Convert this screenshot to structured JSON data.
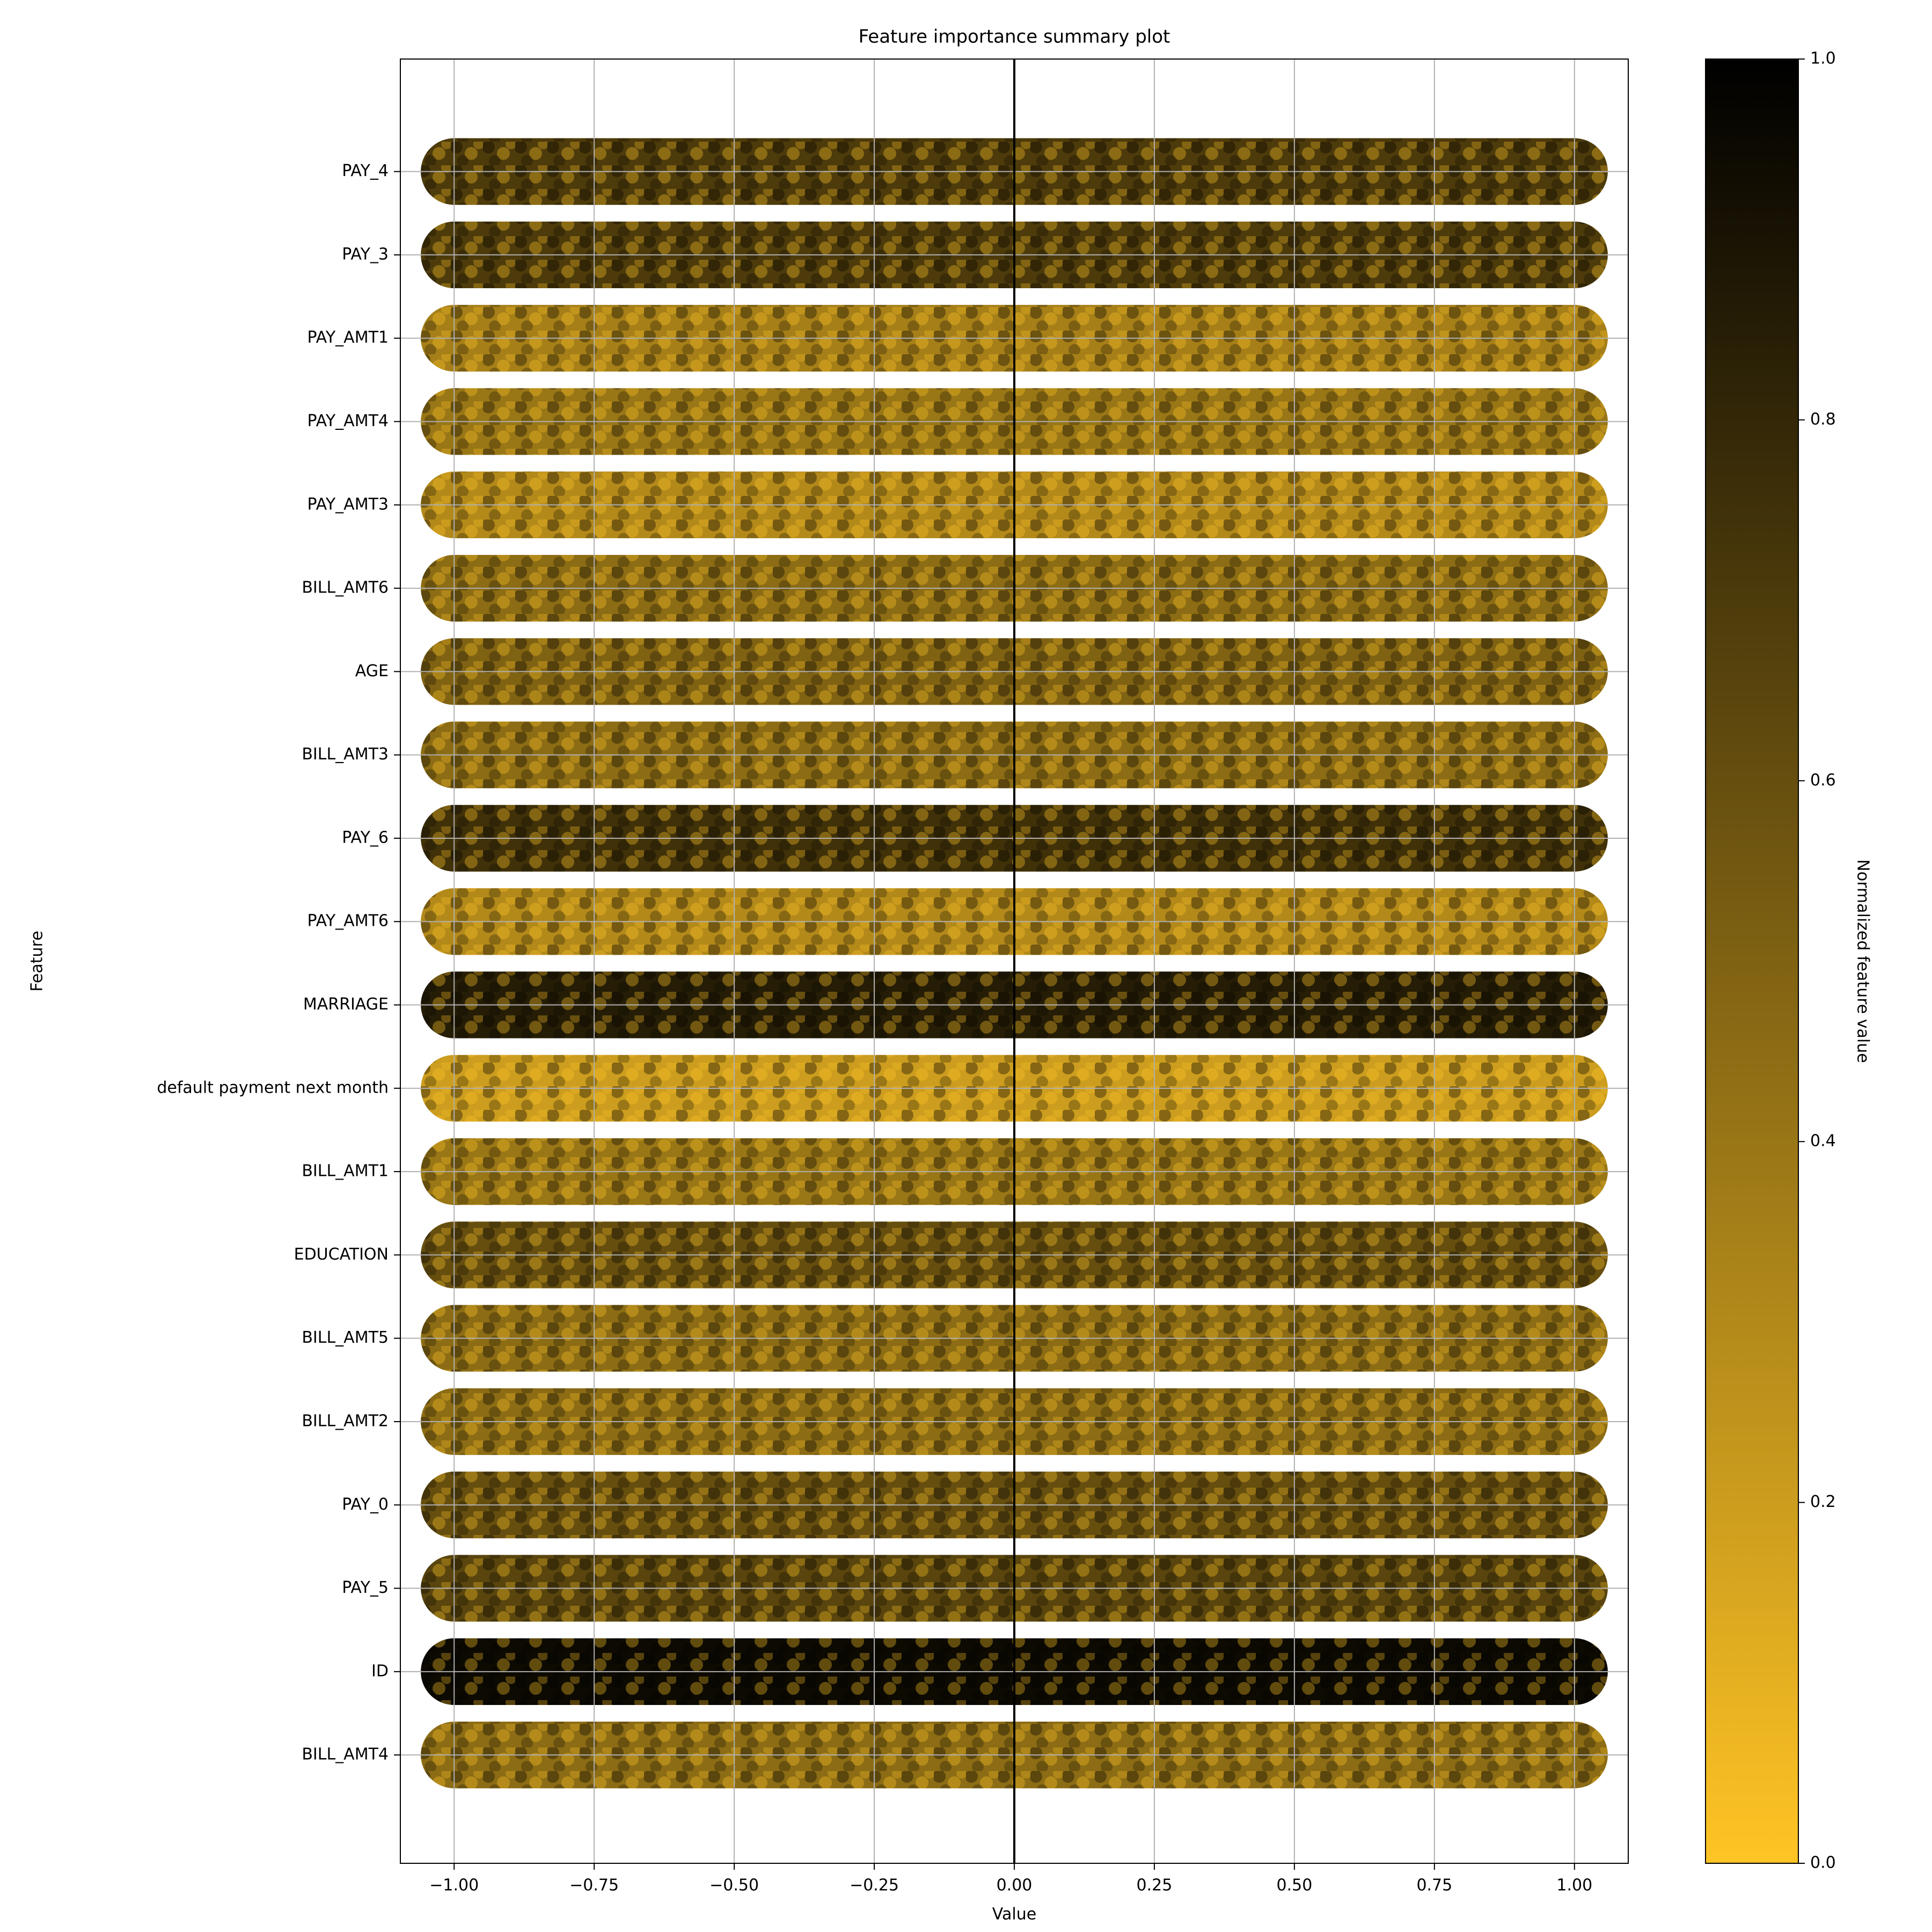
{
  "chart_data": {
    "type": "summary",
    "title": "Feature importance summary plot",
    "xlabel": "Value",
    "ylabel": "Feature",
    "colorbar_label": "Normalized feature value",
    "categories": [
      "PAY_4",
      "PAY_3",
      "PAY_AMT1",
      "PAY_AMT4",
      "PAY_AMT3",
      "BILL_AMT6",
      "AGE",
      "BILL_AMT3",
      "PAY_6",
      "PAY_AMT6",
      "MARRIAGE",
      "default payment next month",
      "BILL_AMT1",
      "EDUCATION",
      "BILL_AMT5",
      "BILL_AMT2",
      "PAY_0",
      "PAY_5",
      "ID",
      "BILL_AMT4"
    ],
    "values": [
      0.7,
      0.7,
      0.35,
      0.4,
      0.3,
      0.45,
      0.5,
      0.45,
      0.75,
      0.3,
      0.85,
      0.2,
      0.4,
      0.6,
      0.45,
      0.45,
      0.6,
      0.65,
      0.95,
      0.45
    ],
    "xrange": [
      -1,
      1
    ],
    "xlim": [
      -1.096,
      1.096
    ],
    "ylim": [
      20.3,
      -1.35
    ],
    "xticks": [
      {
        "value": -1,
        "label": "−1.00"
      },
      {
        "value": -0.75,
        "label": "−0.75"
      },
      {
        "value": -0.5,
        "label": "−0.50"
      },
      {
        "value": -0.25,
        "label": "−0.25"
      },
      {
        "value": 0,
        "label": "0.00"
      },
      {
        "value": 0.25,
        "label": "0.25"
      },
      {
        "value": 0.5,
        "label": "0.50"
      },
      {
        "value": 0.75,
        "label": "0.75"
      },
      {
        "value": 1,
        "label": "1.00"
      }
    ],
    "vline": 0,
    "grid": true,
    "colormap": [
      "#ffc425",
      "#000000"
    ],
    "clim": [
      0,
      1
    ],
    "cticks": [
      {
        "value": 0,
        "label": "0.0"
      },
      {
        "value": 0.2,
        "label": "0.2"
      },
      {
        "value": 0.4,
        "label": "0.4"
      },
      {
        "value": 0.6,
        "label": "0.6"
      },
      {
        "value": 0.8,
        "label": "0.8"
      },
      {
        "value": 1,
        "label": "1.0"
      }
    ]
  }
}
